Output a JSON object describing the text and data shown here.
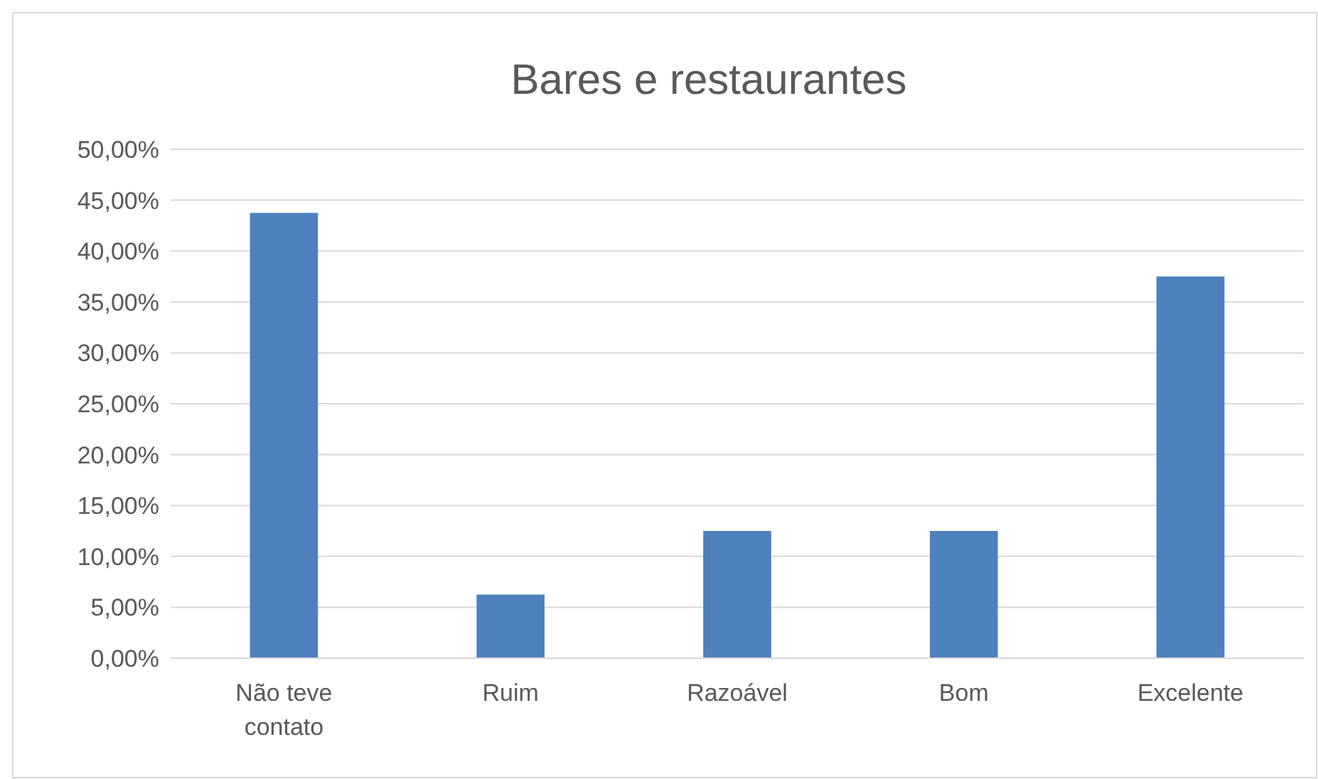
{
  "chart_data": {
    "type": "bar",
    "title": "Bares e restaurantes",
    "categories": [
      "Não teve contato",
      "Ruim",
      "Razoável",
      "Bom",
      "Excelente"
    ],
    "values": [
      43.75,
      6.25,
      12.5,
      12.5,
      37.5
    ],
    "color": "#4f81bd",
    "ylim": [
      0,
      50
    ],
    "yticks": [
      {
        "value": 0,
        "label": "0,00%"
      },
      {
        "value": 5,
        "label": "5,00%"
      },
      {
        "value": 10,
        "label": "10,00%"
      },
      {
        "value": 15,
        "label": "15,00%"
      },
      {
        "value": 20,
        "label": "20,00%"
      },
      {
        "value": 25,
        "label": "25,00%"
      },
      {
        "value": 30,
        "label": "30,00%"
      },
      {
        "value": 35,
        "label": "35,00%"
      },
      {
        "value": 40,
        "label": "40,00%"
      },
      {
        "value": 45,
        "label": "45,00%"
      },
      {
        "value": 50,
        "label": "50,00%"
      }
    ],
    "grid": "y"
  }
}
